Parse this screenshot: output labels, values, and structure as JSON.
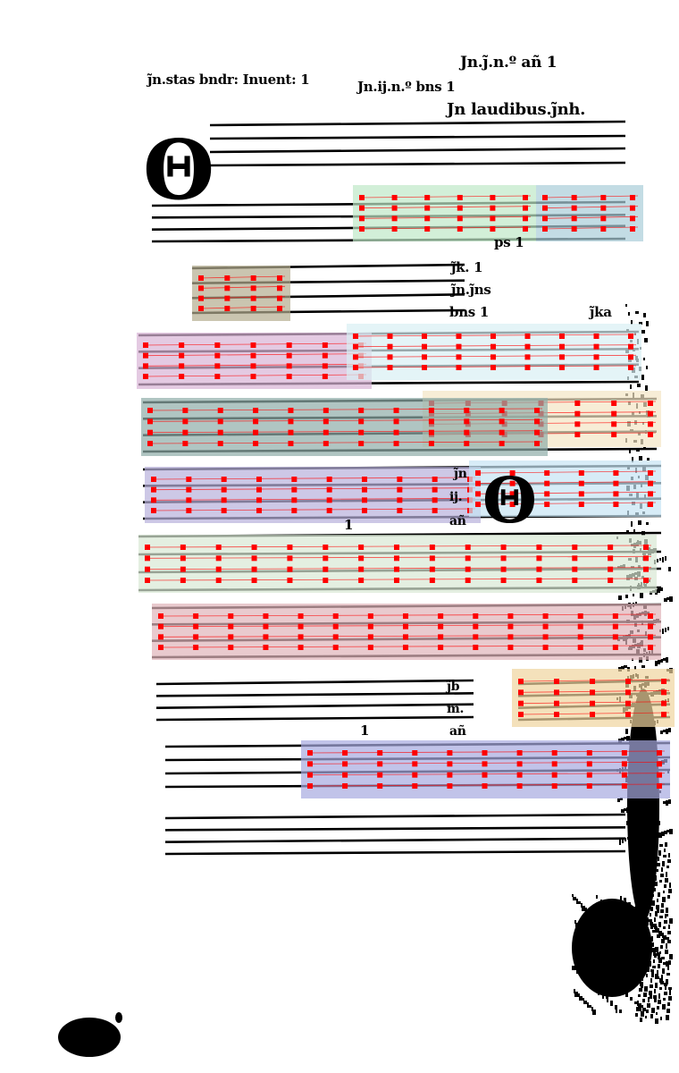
{
  "header": {
    "left_rubric": "ȷ̃n.stas bndr: Inuent: 1",
    "right_rubric_1": "Jn.ȷ̃.n.º añ 1",
    "right_rubric_2": "Jn.ij.n.º bns 1",
    "right_rubric_3": "Jn laudibus.ȷ̃nh."
  },
  "margin_text": [
    {
      "id": "m1",
      "text": "ps 1"
    },
    {
      "id": "m2",
      "text": "ȷ̃k. 1"
    },
    {
      "id": "m3",
      "text": "ȷ̃n.ȷ̃ns"
    },
    {
      "id": "m4",
      "text": "bns 1"
    },
    {
      "id": "m5",
      "text": "ȷ̃ka"
    },
    {
      "id": "m6",
      "text": "ȷ̃n"
    },
    {
      "id": "m7",
      "text": "ij."
    },
    {
      "id": "m8",
      "text": "añ"
    },
    {
      "id": "m9",
      "text": "1"
    },
    {
      "id": "m10",
      "text": "ȷ̃b"
    },
    {
      "id": "m11",
      "text": "m."
    },
    {
      "id": "m12",
      "text": "añ"
    },
    {
      "id": "m13",
      "text": "1"
    }
  ],
  "initials": [
    {
      "id": "initial-1",
      "letter": "Θ"
    },
    {
      "id": "initial-2",
      "letter": "Θ"
    }
  ],
  "colors": {
    "ink": "#000000",
    "marker": "#ff0000",
    "regions": [
      "#bfe8c8",
      "#a9cdd8",
      "#b3ad8f",
      "#d8b3d5",
      "#d8f0f3",
      "#f3e6c4",
      "#8eaca8",
      "#b8b0dc",
      "#c6e4f4",
      "#d9e8d4",
      "#dfb3b9",
      "#f0d49e",
      "#a7a9e0"
    ]
  }
}
